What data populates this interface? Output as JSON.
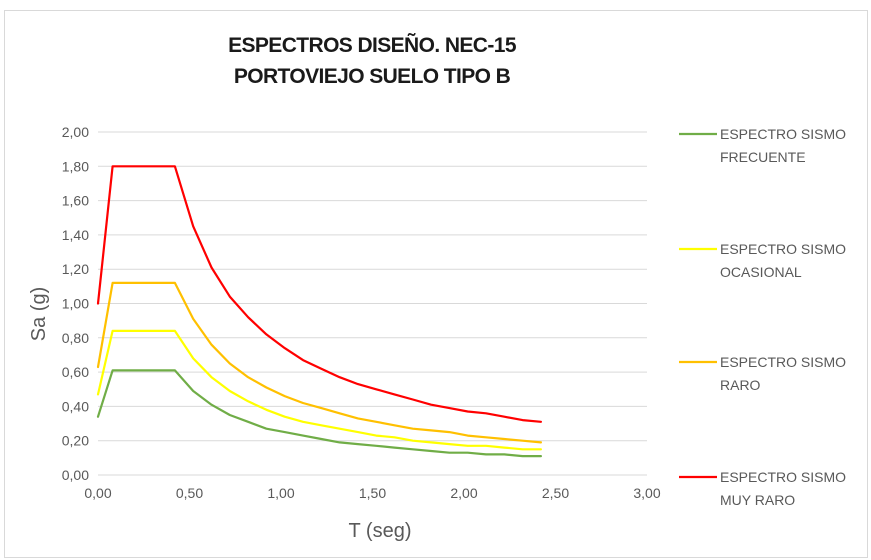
{
  "chart_data": {
    "type": "line",
    "title_lines": [
      "ESPECTROS DISEÑO. NEC-15",
      "PORTOVIEJO SUELO TIPO B"
    ],
    "xlabel": "T (seg)",
    "ylabel": "Sa (g)",
    "xlim": [
      0,
      3
    ],
    "ylim": [
      0,
      2
    ],
    "x_ticks": [
      "0,00",
      "0,50",
      "1,00",
      "1,50",
      "2,00",
      "2,50",
      "3,00"
    ],
    "y_ticks": [
      "0,00",
      "0,20",
      "0,40",
      "0,60",
      "0,80",
      "1,00",
      "1,20",
      "1,40",
      "1,60",
      "1,80",
      "2,00"
    ],
    "grid": "horizontal",
    "legend_position": "right",
    "x": [
      0.0,
      0.08,
      0.1,
      0.2,
      0.3,
      0.42,
      0.52,
      0.62,
      0.72,
      0.82,
      0.92,
      1.02,
      1.12,
      1.22,
      1.32,
      1.42,
      1.52,
      1.62,
      1.72,
      1.82,
      1.92,
      2.02,
      2.12,
      2.22,
      2.32,
      2.42
    ],
    "series": [
      {
        "name_lines": [
          "ESPECTRO SISMO",
          "FRECUENTE"
        ],
        "color": "#70ad47",
        "values": [
          0.34,
          0.61,
          0.61,
          0.61,
          0.61,
          0.61,
          0.49,
          0.41,
          0.35,
          0.31,
          0.27,
          0.25,
          0.23,
          0.21,
          0.19,
          0.18,
          0.17,
          0.16,
          0.15,
          0.14,
          0.13,
          0.13,
          0.12,
          0.12,
          0.11,
          0.11
        ]
      },
      {
        "name_lines": [
          "ESPECTRO SISMO",
          "OCASIONAL"
        ],
        "color": "#ffff00",
        "values": [
          0.47,
          0.84,
          0.84,
          0.84,
          0.84,
          0.84,
          0.68,
          0.57,
          0.49,
          0.43,
          0.38,
          0.34,
          0.31,
          0.29,
          0.27,
          0.25,
          0.23,
          0.22,
          0.2,
          0.19,
          0.18,
          0.17,
          0.17,
          0.16,
          0.15,
          0.15
        ]
      },
      {
        "name_lines": [
          "ESPECTRO SISMO",
          "RARO"
        ],
        "color": "#ffc000",
        "values": [
          0.63,
          1.12,
          1.12,
          1.12,
          1.12,
          1.12,
          0.91,
          0.76,
          0.65,
          0.57,
          0.51,
          0.46,
          0.42,
          0.39,
          0.36,
          0.33,
          0.31,
          0.29,
          0.27,
          0.26,
          0.25,
          0.23,
          0.22,
          0.21,
          0.2,
          0.19
        ]
      },
      {
        "name_lines": [
          "ESPECTRO SISMO",
          "MUY RARO"
        ],
        "color": "#ff0000",
        "values": [
          1.0,
          1.8,
          1.8,
          1.8,
          1.8,
          1.8,
          1.45,
          1.21,
          1.04,
          0.92,
          0.82,
          0.74,
          0.67,
          0.62,
          0.57,
          0.53,
          0.5,
          0.47,
          0.44,
          0.41,
          0.39,
          0.37,
          0.36,
          0.34,
          0.32,
          0.31
        ]
      }
    ],
    "gridline_color": "#d9d9d9"
  }
}
